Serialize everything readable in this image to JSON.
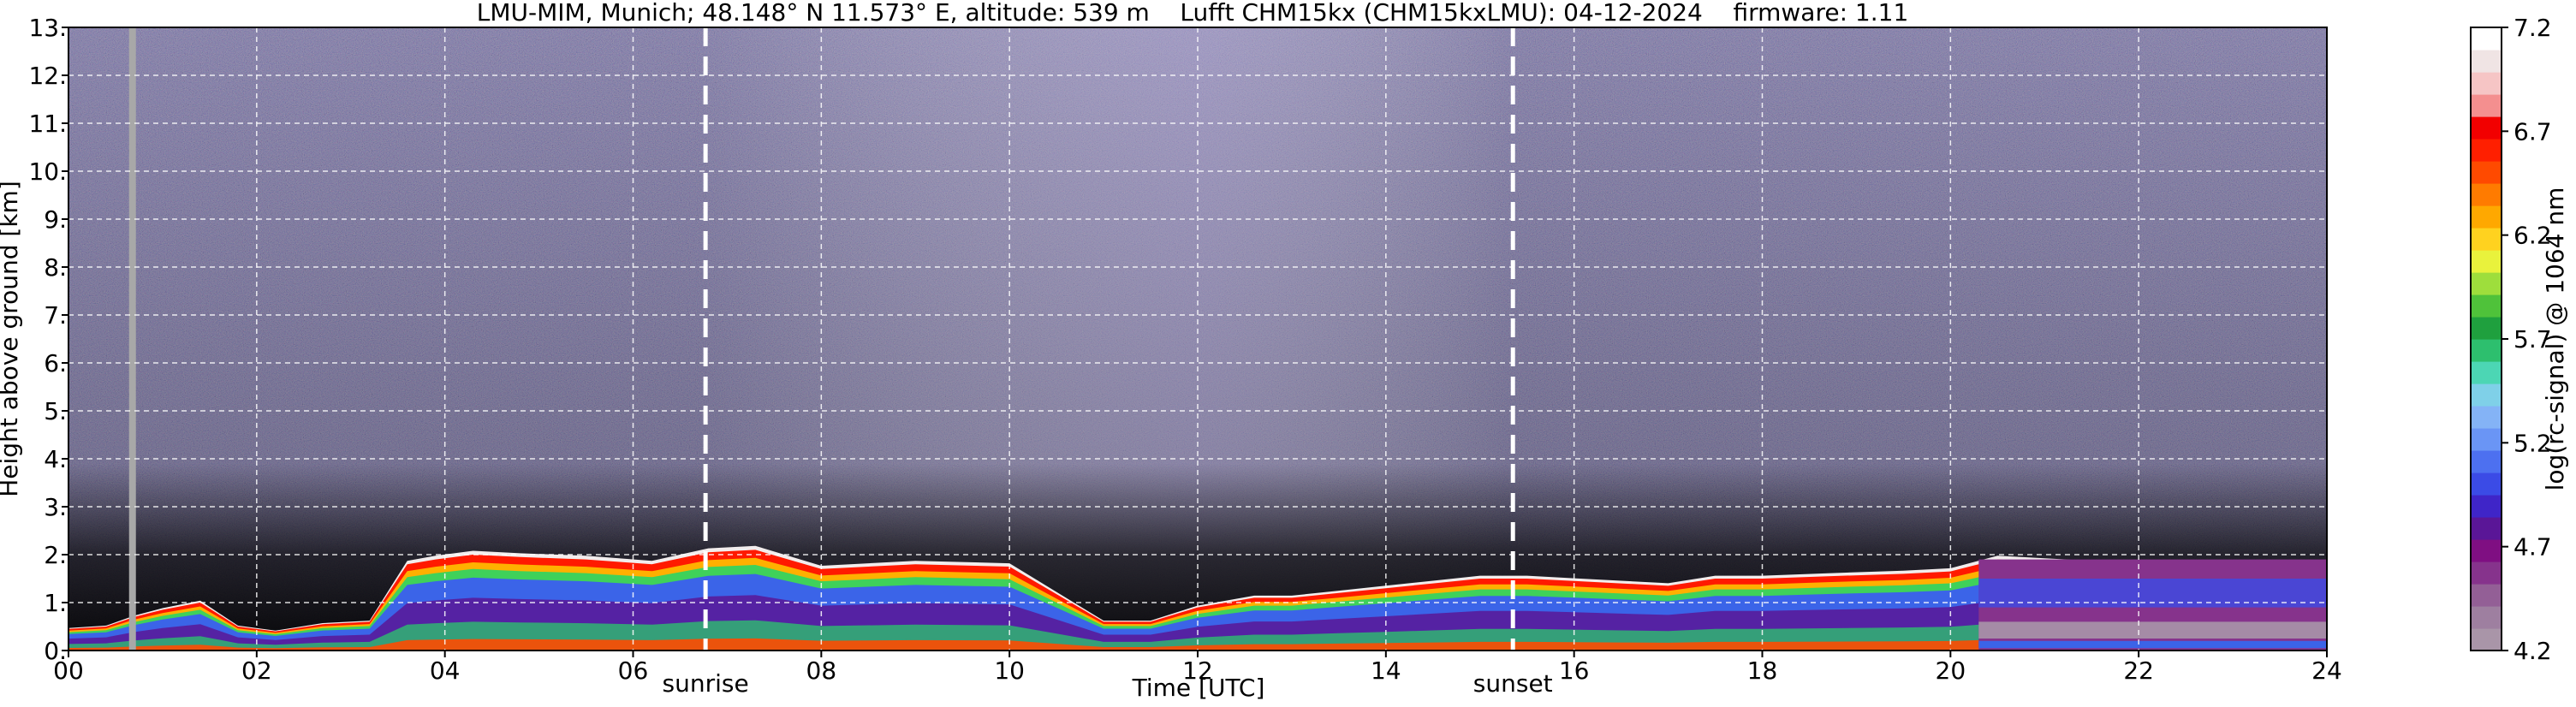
{
  "chart_data": {
    "type": "heatmap",
    "title": "LMU-MIM, Munich; 48.148° N 11.573° E, altitude: 539 m    Lufft CHM15kx (CHM15kxLMU): 04-12-2024    firmware: 1.11",
    "xlabel": "Time [UTC]",
    "ylabel": "Height above ground [km]",
    "xlim": [
      0,
      24
    ],
    "ylim": [
      0,
      13
    ],
    "x_ticks": [
      "00",
      "02",
      "04",
      "06",
      "08",
      "10",
      "12",
      "14",
      "16",
      "18",
      "20",
      "22",
      "24"
    ],
    "y_ticks": [
      "0.",
      "1.",
      "2.",
      "3.",
      "4.",
      "5.",
      "6.",
      "7.",
      "8.",
      "9.",
      "10.",
      "11.",
      "12.",
      "13."
    ],
    "grid": true,
    "annotations": [
      {
        "text": "sunrise",
        "x": 6.77
      },
      {
        "text": "sunset",
        "x": 15.35
      }
    ],
    "colorbar": {
      "label": "log(rc-signal) @ 1064 nm",
      "range": [
        4.2,
        7.2
      ],
      "ticks": [
        "4.2",
        "4.7",
        "5.2",
        "5.7",
        "6.2",
        "6.7",
        "7.2"
      ],
      "colors": [
        "#a995a8",
        "#9e7fa0",
        "#935f96",
        "#86338c",
        "#7f0f82",
        "#5a1697",
        "#3f25c8",
        "#3b4be6",
        "#4d70f0",
        "#6a95f5",
        "#84b3f6",
        "#7fd0e8",
        "#4cd6b4",
        "#2dbf6e",
        "#1fa03e",
        "#4fc23a",
        "#9ede3c",
        "#e9f23c",
        "#ffd21f",
        "#ffa800",
        "#ff7b00",
        "#ff4a00",
        "#ff1f00",
        "#f20000",
        "#f48f8f",
        "#f6c5c5",
        "#f0e4e4",
        "#ffffff"
      ]
    },
    "ceiling_gap": {
      "x": 0.68
    },
    "layers": [
      {
        "x": [
          0.0,
          0.4,
          0.7,
          1.0,
          1.4,
          1.8,
          2.2,
          2.7,
          3.2,
          3.6,
          3.9,
          4.3,
          4.8,
          5.5,
          6.2,
          6.8,
          7.3,
          8.0,
          9.0,
          10.0,
          11.0,
          11.5,
          12.0,
          12.6,
          13.0,
          13.5,
          14.0,
          14.5,
          15.0,
          15.5,
          16.0,
          16.5,
          17.0,
          17.5,
          18.0,
          18.7,
          19.5,
          20.0,
          20.5,
          21.0,
          22.0,
          23.0,
          24.0
        ],
        "top": [
          0.45,
          0.5,
          0.7,
          0.85,
          1.0,
          0.5,
          0.4,
          0.55,
          0.6,
          1.8,
          1.9,
          2.0,
          1.95,
          1.9,
          1.8,
          2.05,
          2.1,
          1.7,
          1.8,
          1.75,
          0.6,
          0.6,
          0.9,
          1.1,
          1.1,
          1.2,
          1.3,
          1.4,
          1.5,
          1.5,
          1.45,
          1.4,
          1.35,
          1.5,
          1.5,
          1.55,
          1.6,
          1.65,
          1.9,
          1.85,
          1.75,
          1.7,
          1.7
        ]
      }
    ]
  }
}
